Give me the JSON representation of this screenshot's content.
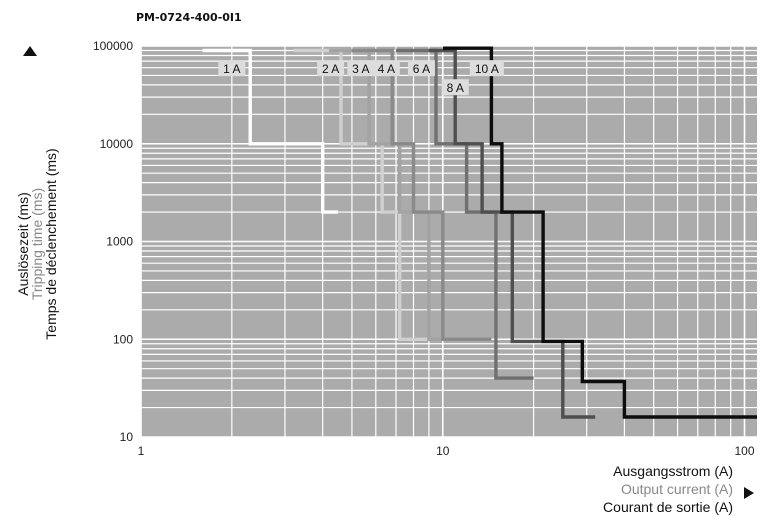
{
  "chart_data": {
    "type": "line",
    "title": "PM-0724-400-0I1",
    "xscale": "log",
    "yscale": "log",
    "xlim": [
      1,
      110
    ],
    "ylim": [
      10,
      100000
    ],
    "x_ticks": [
      1,
      10,
      100
    ],
    "x_tick_labels": [
      "1",
      "10",
      "100"
    ],
    "y_ticks": [
      10,
      100,
      1000,
      10000,
      100000
    ],
    "y_tick_labels": [
      "10",
      "100",
      "1000",
      "10000",
      "100000"
    ],
    "xlabel": [
      "Ausgangsstrom (A)",
      "Output current (A)",
      "Courant de sortie (A)"
    ],
    "ylabel": [
      "Auslösezeit (ms)",
      "Tripping time (ms)",
      "Temps de déclenchement (ms)"
    ],
    "grid": true,
    "colors": {
      "plot_background": "#ababab",
      "grid": "#ffffff",
      "1 A": "#ffffff",
      "2 A": "#d0d0d0",
      "3 A": "#a3a3a3",
      "4 A": "#8a8a8a",
      "6 A": "#707070",
      "8 A": "#4f4f4f",
      "10 A": "#0d0d0d"
    },
    "series": [
      {
        "name": "1 A",
        "x": [
          1.6,
          2.3,
          2.3,
          4.0,
          4.0,
          4.5
        ],
        "y": [
          90000,
          90000,
          10000,
          10000,
          2000,
          2000
        ]
      },
      {
        "name": "2 A",
        "x": [
          3.2,
          4.6,
          4.6,
          6.3,
          6.3,
          7.2,
          7.2,
          9.0
        ],
        "y": [
          90000,
          90000,
          10000,
          10000,
          2000,
          2000,
          100,
          100
        ]
      },
      {
        "name": "3 A",
        "x": [
          4.2,
          5.7,
          5.7,
          7.2,
          7.2,
          9.0,
          9.0,
          12.0
        ],
        "y": [
          90000,
          90000,
          10000,
          10000,
          2000,
          2000,
          100,
          100
        ]
      },
      {
        "name": "4 A",
        "x": [
          5.0,
          6.8,
          6.8,
          8.0,
          8.0,
          10.0,
          10.0,
          14.5
        ],
        "y": [
          90000,
          90000,
          10000,
          10000,
          2000,
          2000,
          100,
          100
        ]
      },
      {
        "name": "6 A",
        "x": [
          7.0,
          9.5,
          9.5,
          12.0,
          12.0,
          15.0,
          15.0,
          20.0
        ],
        "y": [
          90000,
          90000,
          10000,
          10000,
          2000,
          2000,
          40,
          40
        ]
      },
      {
        "name": "8 A",
        "x": [
          9.0,
          11.0,
          11.0,
          13.5,
          13.5,
          17.0,
          17.0,
          25.0,
          25.0,
          32.0
        ],
        "y": [
          90000,
          90000,
          10000,
          10000,
          2000,
          2000,
          95,
          95,
          16,
          16
        ]
      },
      {
        "name": "10 A",
        "x": [
          10.0,
          14.5,
          14.5,
          15.7,
          15.7,
          21.5,
          21.5,
          29.0,
          29.0,
          40.0,
          40.0,
          110.0
        ],
        "y": [
          95000,
          95000,
          10000,
          10000,
          2000,
          2000,
          95,
          95,
          37,
          37,
          16,
          16
        ]
      }
    ]
  }
}
